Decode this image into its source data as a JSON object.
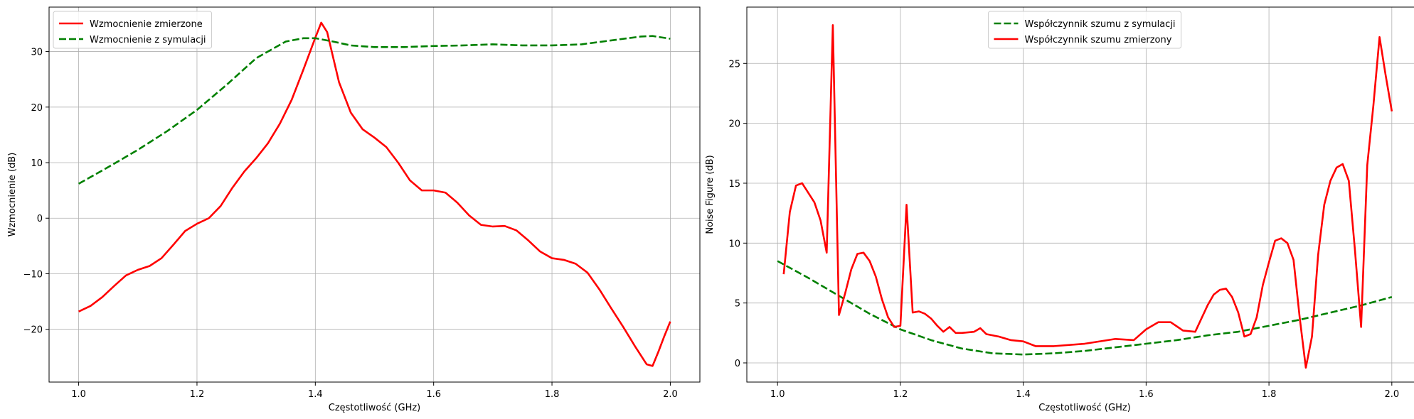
{
  "chart_data": [
    {
      "type": "line",
      "xlabel": "Częstotliwość (GHz)",
      "ylabel": "Wzmocnienie (dB)",
      "xlim": [
        0.95,
        2.05
      ],
      "ylim": [
        -29.5,
        38
      ],
      "xticks": [
        1.0,
        1.2,
        1.4,
        1.6,
        1.8,
        2.0
      ],
      "xtick_labels": [
        "1.0",
        "1.2",
        "1.4",
        "1.6",
        "1.8",
        "2.0"
      ],
      "yticks": [
        -20,
        -10,
        0,
        10,
        20,
        30
      ],
      "ytick_labels": [
        "−20",
        "−10",
        "0",
        "10",
        "20",
        "30"
      ],
      "grid": true,
      "legend_position": "top-left",
      "series": [
        {
          "name": "Wzmocnienie zmierzone",
          "color": "#ff0000",
          "dash": "solid",
          "x": [
            1.0,
            1.02,
            1.04,
            1.06,
            1.08,
            1.1,
            1.12,
            1.14,
            1.16,
            1.18,
            1.2,
            1.22,
            1.24,
            1.26,
            1.28,
            1.3,
            1.32,
            1.34,
            1.36,
            1.38,
            1.4,
            1.41,
            1.42,
            1.43,
            1.44,
            1.46,
            1.48,
            1.5,
            1.52,
            1.54,
            1.56,
            1.58,
            1.6,
            1.62,
            1.64,
            1.66,
            1.68,
            1.7,
            1.72,
            1.74,
            1.76,
            1.78,
            1.8,
            1.82,
            1.84,
            1.86,
            1.88,
            1.9,
            1.92,
            1.94,
            1.96,
            1.97,
            1.98,
            1.99,
            2.0
          ],
          "y": [
            -16.8,
            -15.8,
            -14.2,
            -12.2,
            -10.3,
            -9.3,
            -8.6,
            -7.2,
            -4.8,
            -2.3,
            -1.0,
            0.0,
            2.2,
            5.5,
            8.4,
            10.8,
            13.5,
            17.0,
            21.3,
            26.8,
            32.5,
            35.2,
            33.5,
            29.0,
            24.5,
            19.0,
            16.0,
            14.5,
            12.8,
            10.0,
            6.8,
            5.0,
            5.0,
            4.6,
            2.8,
            0.5,
            -1.2,
            -1.5,
            -1.4,
            -2.2,
            -4.0,
            -6.0,
            -7.2,
            -7.5,
            -8.2,
            -9.8,
            -12.8,
            -16.2,
            -19.5,
            -23.0,
            -26.3,
            -26.6,
            -24.0,
            -21.2,
            -18.6
          ]
        },
        {
          "name": "Wzmocnienie z symulacji",
          "color": "#008000",
          "dash": "dashed",
          "x": [
            1.0,
            1.05,
            1.1,
            1.15,
            1.2,
            1.25,
            1.3,
            1.35,
            1.38,
            1.4,
            1.43,
            1.46,
            1.5,
            1.55,
            1.6,
            1.65,
            1.7,
            1.75,
            1.8,
            1.85,
            1.9,
            1.95,
            1.97,
            2.0
          ],
          "y": [
            6.2,
            9.2,
            12.3,
            15.7,
            19.5,
            24.0,
            28.8,
            31.8,
            32.4,
            32.4,
            31.8,
            31.1,
            30.8,
            30.8,
            31.0,
            31.1,
            31.3,
            31.1,
            31.1,
            31.3,
            32.0,
            32.7,
            32.8,
            32.3
          ]
        }
      ]
    },
    {
      "type": "line",
      "xlabel": "Częstotliwość (GHz)",
      "ylabel": "Noise Figure (dB)",
      "xlim": [
        0.95,
        2.05
      ],
      "ylim": [
        -1.6,
        29.7
      ],
      "xticks": [
        1.0,
        1.2,
        1.4,
        1.6,
        1.8,
        2.0
      ],
      "xtick_labels": [
        "1.0",
        "1.2",
        "1.4",
        "1.6",
        "1.8",
        "2.0"
      ],
      "yticks": [
        0,
        5,
        10,
        15,
        20,
        25
      ],
      "ytick_labels": [
        "0",
        "5",
        "10",
        "15",
        "20",
        "25"
      ],
      "grid": true,
      "legend_position": "top-center",
      "series": [
        {
          "name": "Współczynnik szumu z symulacji",
          "color": "#008000",
          "dash": "dashed",
          "x": [
            1.0,
            1.05,
            1.1,
            1.15,
            1.2,
            1.25,
            1.3,
            1.35,
            1.4,
            1.45,
            1.5,
            1.55,
            1.6,
            1.65,
            1.7,
            1.75,
            1.8,
            1.85,
            1.9,
            1.95,
            2.0
          ],
          "y": [
            8.5,
            7.1,
            5.6,
            4.1,
            2.8,
            1.9,
            1.2,
            0.8,
            0.7,
            0.8,
            1.0,
            1.3,
            1.6,
            1.9,
            2.3,
            2.6,
            3.1,
            3.6,
            4.2,
            4.8,
            5.5
          ]
        },
        {
          "name": "Współczynnik szumu zmierzony",
          "color": "#ff0000",
          "dash": "solid",
          "x": [
            1.01,
            1.02,
            1.03,
            1.04,
            1.05,
            1.06,
            1.07,
            1.08,
            1.09,
            1.1,
            1.11,
            1.12,
            1.13,
            1.14,
            1.15,
            1.16,
            1.17,
            1.18,
            1.19,
            1.2,
            1.21,
            1.22,
            1.23,
            1.24,
            1.25,
            1.26,
            1.27,
            1.28,
            1.29,
            1.3,
            1.32,
            1.33,
            1.34,
            1.36,
            1.38,
            1.4,
            1.42,
            1.45,
            1.5,
            1.55,
            1.58,
            1.6,
            1.62,
            1.64,
            1.66,
            1.68,
            1.7,
            1.71,
            1.72,
            1.73,
            1.74,
            1.75,
            1.76,
            1.77,
            1.78,
            1.79,
            1.8,
            1.81,
            1.82,
            1.83,
            1.84,
            1.85,
            1.86,
            1.87,
            1.88,
            1.89,
            1.9,
            1.91,
            1.92,
            1.93,
            1.94,
            1.95,
            1.96,
            1.97,
            1.98,
            1.99,
            2.0
          ],
          "y": [
            7.4,
            12.6,
            14.8,
            15.0,
            14.2,
            13.4,
            11.9,
            9.2,
            28.2,
            4.0,
            5.8,
            7.8,
            9.1,
            9.2,
            8.5,
            7.2,
            5.3,
            3.8,
            3.0,
            3.1,
            13.2,
            4.2,
            4.3,
            4.1,
            3.7,
            3.1,
            2.6,
            3.0,
            2.5,
            2.5,
            2.6,
            2.9,
            2.4,
            2.2,
            1.9,
            1.8,
            1.4,
            1.4,
            1.6,
            2.0,
            1.9,
            2.8,
            3.4,
            3.4,
            2.7,
            2.6,
            4.8,
            5.7,
            6.1,
            6.2,
            5.5,
            4.2,
            2.2,
            2.4,
            3.8,
            6.5,
            8.4,
            10.2,
            10.4,
            10.0,
            8.6,
            3.8,
            -0.4,
            2.2,
            9.0,
            13.2,
            15.2,
            16.3,
            16.6,
            15.2,
            9.4,
            3.0,
            16.5,
            21.5,
            27.2,
            24.0,
            21.0
          ]
        }
      ]
    }
  ]
}
